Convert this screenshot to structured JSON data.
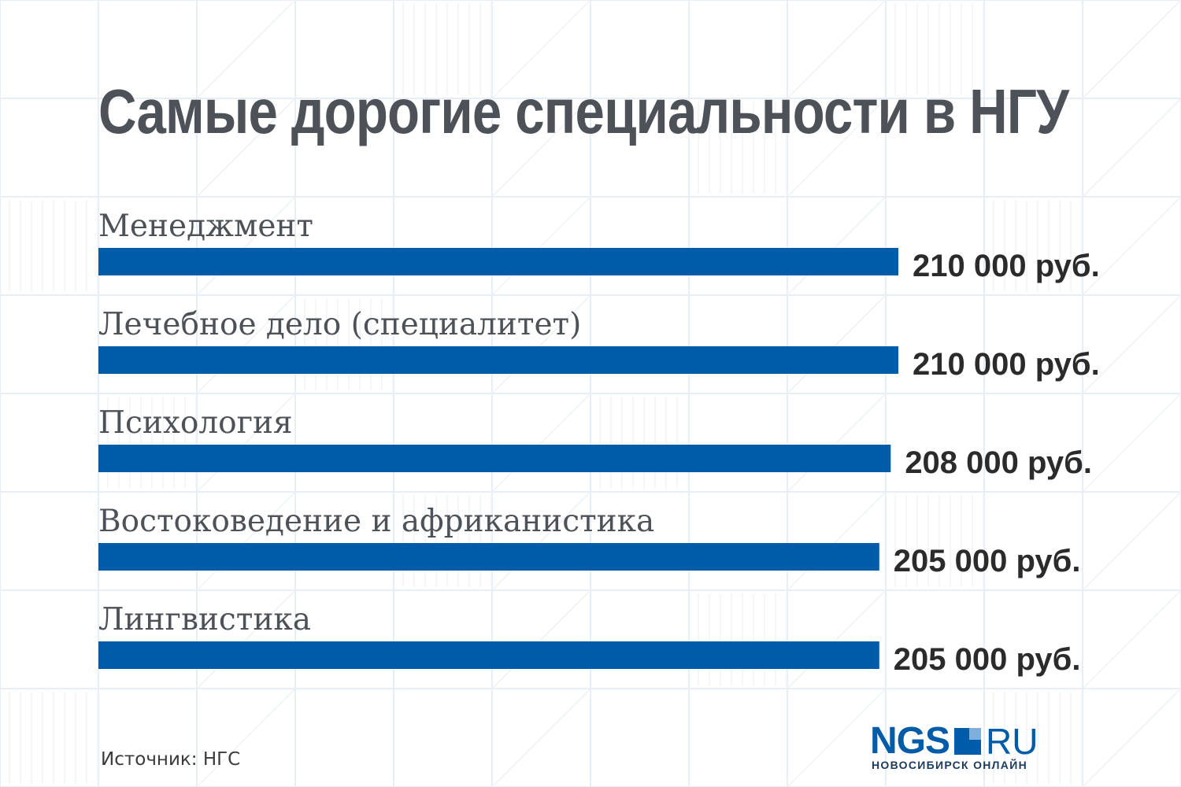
{
  "chart_data": {
    "type": "bar",
    "orientation": "horizontal",
    "title": "Самые дорогие специальности в НГУ",
    "categories": [
      "Менеджмент",
      "Лечебное дело (специалитет)",
      "Психология",
      "Востоковедение и африканистика",
      "Лингвистика"
    ],
    "values": [
      210000,
      210000,
      208000,
      205000,
      205000
    ],
    "value_labels": [
      "210 000 руб.",
      "210 000 руб.",
      "208 000 руб.",
      "205 000 руб.",
      "205 000 руб."
    ],
    "bar_color": "#005ca9",
    "grid": false,
    "legend": "none"
  },
  "footer": {
    "source": "Источник: НГС"
  },
  "logo": {
    "brand": "NGS",
    "suffix": "RU",
    "tagline": "НОВОСИБИРСК ОНЛАЙН"
  },
  "colors": {
    "title": "#4d5258",
    "bar": "#005ca9",
    "logo": "#005ca9"
  }
}
